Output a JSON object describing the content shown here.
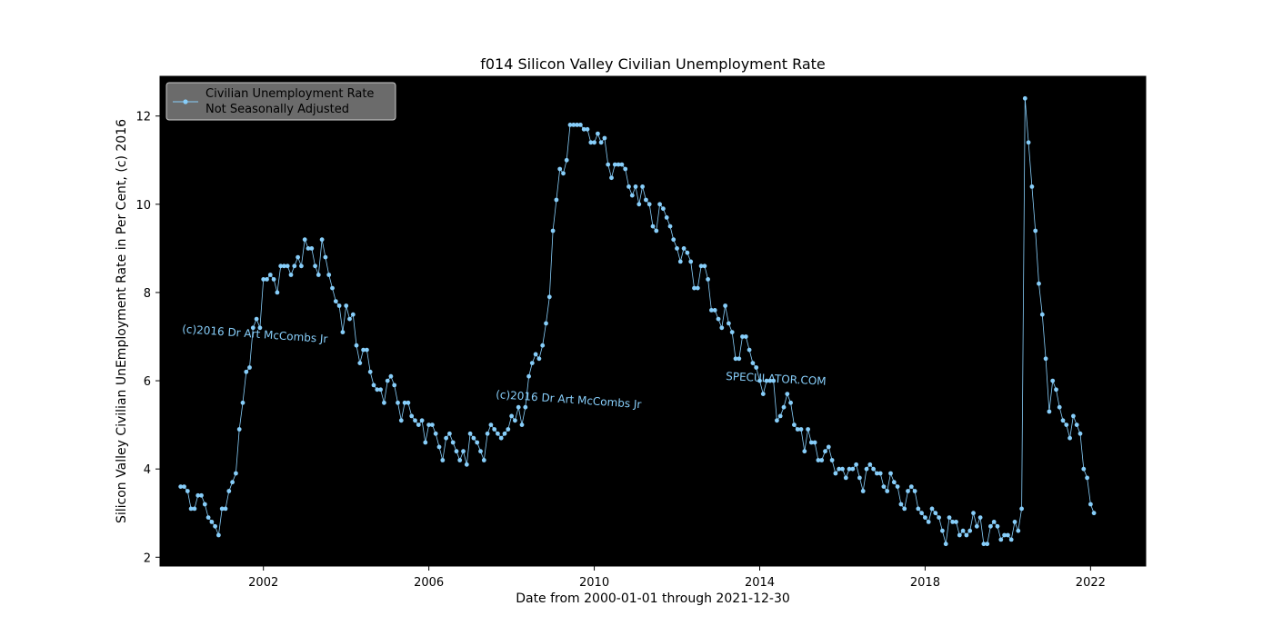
{
  "chart_data": {
    "type": "line",
    "title": "f014 Silicon Valley Civilian Unemployment Rate",
    "xlabel": "Date from 2000-01-01 through 2021-12-30",
    "ylabel": "Silicon Valley Civilian UnEmployment Rate in Per Cent, (c) 2016",
    "xlim": [
      "1999-07-01",
      "2023-05-01"
    ],
    "ylim": [
      1.8,
      12.9
    ],
    "xticks": [
      "2002",
      "2006",
      "2010",
      "2014",
      "2018",
      "2022"
    ],
    "yticks": [
      "2",
      "4",
      "6",
      "8",
      "10",
      "12"
    ],
    "legend": {
      "position": "top-left",
      "line1": "Civilian Unemployment Rate",
      "line2": "Not Seasonally Adjusted"
    },
    "annotations": [
      {
        "id": "wm1",
        "text": "(c)2016 Dr Art McCombs Jr"
      },
      {
        "id": "wm2",
        "text": "(c)2016 Dr Art McCombs Jr"
      },
      {
        "id": "wm3",
        "text": "SPECULATOR.COM"
      }
    ],
    "colors": {
      "plot_bg": "#000000",
      "series": "#87cefa",
      "legend_bg": "#6b6b6b",
      "annotation": "#87cefa"
    },
    "series": [
      {
        "name": "Civilian Unemployment Rate Not Seasonally Adjusted",
        "start": "2000-01",
        "values": [
          3.6,
          3.6,
          3.5,
          3.1,
          3.1,
          3.4,
          3.4,
          3.2,
          2.9,
          2.8,
          2.7,
          2.5,
          3.1,
          3.1,
          3.5,
          3.7,
          3.9,
          4.9,
          5.5,
          6.2,
          6.3,
          7.2,
          7.4,
          7.2,
          8.3,
          8.3,
          8.4,
          8.3,
          8.0,
          8.6,
          8.6,
          8.6,
          8.4,
          8.6,
          8.8,
          8.6,
          9.2,
          9.0,
          9.0,
          8.6,
          8.4,
          9.2,
          8.8,
          8.4,
          8.1,
          7.8,
          7.7,
          7.1,
          7.7,
          7.4,
          7.5,
          6.8,
          6.4,
          6.7,
          6.7,
          6.2,
          5.9,
          5.8,
          5.8,
          5.5,
          6.0,
          6.1,
          5.9,
          5.5,
          5.1,
          5.5,
          5.5,
          5.2,
          5.1,
          5.0,
          5.1,
          4.6,
          5.0,
          5.0,
          4.8,
          4.5,
          4.2,
          4.7,
          4.8,
          4.6,
          4.4,
          4.2,
          4.4,
          4.1,
          4.8,
          4.7,
          4.6,
          4.4,
          4.2,
          4.8,
          5.0,
          4.9,
          4.8,
          4.7,
          4.8,
          4.9,
          5.2,
          5.1,
          5.4,
          5.0,
          5.4,
          6.1,
          6.4,
          6.6,
          6.5,
          6.8,
          7.3,
          7.9,
          9.4,
          10.1,
          10.8,
          10.7,
          11.0,
          11.8,
          11.8,
          11.8,
          11.8,
          11.7,
          11.7,
          11.4,
          11.4,
          11.6,
          11.4,
          11.5,
          10.9,
          10.6,
          10.9,
          10.9,
          10.9,
          10.8,
          10.4,
          10.2,
          10.4,
          10.0,
          10.4,
          10.1,
          10.0,
          9.5,
          9.4,
          10.0,
          9.9,
          9.7,
          9.5,
          9.2,
          9.0,
          8.7,
          9.0,
          8.9,
          8.7,
          8.1,
          8.1,
          8.6,
          8.6,
          8.3,
          7.6,
          7.6,
          7.4,
          7.2,
          7.7,
          7.3,
          7.1,
          6.5,
          6.5,
          7.0,
          7.0,
          6.7,
          6.4,
          6.3,
          6.0,
          5.7,
          6.0,
          6.0,
          6.0,
          5.1,
          5.2,
          5.4,
          5.7,
          5.5,
          5.0,
          4.9,
          4.9,
          4.4,
          4.9,
          4.6,
          4.6,
          4.2,
          4.2,
          4.4,
          4.5,
          4.2,
          3.9,
          4.0,
          4.0,
          3.8,
          4.0,
          4.0,
          4.1,
          3.8,
          3.5,
          4.0,
          4.1,
          4.0,
          3.9,
          3.9,
          3.6,
          3.5,
          3.9,
          3.7,
          3.6,
          3.2,
          3.1,
          3.5,
          3.6,
          3.5,
          3.1,
          3.0,
          2.9,
          2.8,
          3.1,
          3.0,
          2.9,
          2.6,
          2.3,
          2.9,
          2.8,
          2.8,
          2.5,
          2.6,
          2.5,
          2.6,
          3.0,
          2.7,
          2.9,
          2.3,
          2.3,
          2.7,
          2.8,
          2.7,
          2.4,
          2.5,
          2.5,
          2.4,
          2.8,
          2.6,
          3.1,
          12.4,
          11.4,
          10.4,
          9.4,
          8.2,
          7.5,
          6.5,
          5.3,
          6.0,
          5.8,
          5.4,
          5.1,
          5.0,
          4.7,
          5.2,
          5.0,
          4.8,
          4.0,
          3.8,
          3.2,
          3.0
        ]
      }
    ]
  }
}
